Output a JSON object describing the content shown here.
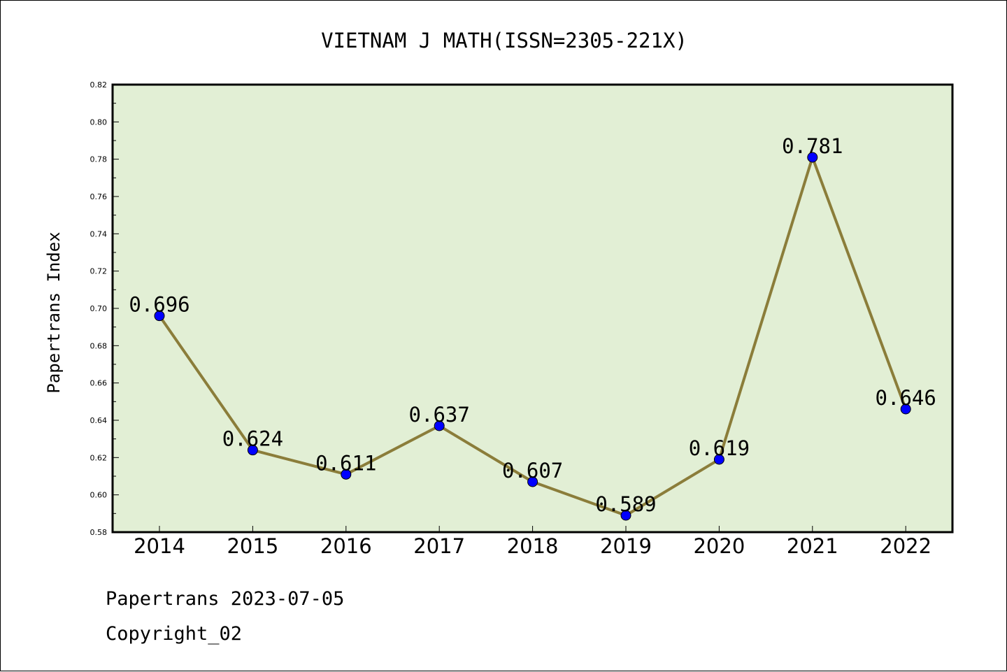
{
  "chart_data": {
    "type": "line",
    "title": "VIETNAM J MATH(ISSN=2305-221X)",
    "xlabel": "",
    "ylabel": "Papertrans Index",
    "categories": [
      "2014",
      "2015",
      "2016",
      "2017",
      "2018",
      "2019",
      "2020",
      "2021",
      "2022"
    ],
    "values": [
      0.696,
      0.624,
      0.611,
      0.637,
      0.607,
      0.589,
      0.619,
      0.781,
      0.646
    ],
    "data_labels": [
      "0.696",
      "0.624",
      "0.611",
      "0.637",
      "0.607",
      "0.589",
      "0.619",
      "0.781",
      "0.646"
    ],
    "ylim": [
      0.58,
      0.82
    ],
    "yticks": [
      "0.58",
      "0.60",
      "0.62",
      "0.64",
      "0.66",
      "0.68",
      "0.70",
      "0.72",
      "0.74",
      "0.76",
      "0.78",
      "0.80",
      "0.82"
    ],
    "grid": false,
    "legend": "none",
    "colors": {
      "plot_background": "#e2efd5",
      "line": "#8b7d3a",
      "marker": "#0000ff"
    }
  },
  "footer": {
    "date_line": "Papertrans 2023-07-05",
    "copyright": "Copyright_02"
  }
}
